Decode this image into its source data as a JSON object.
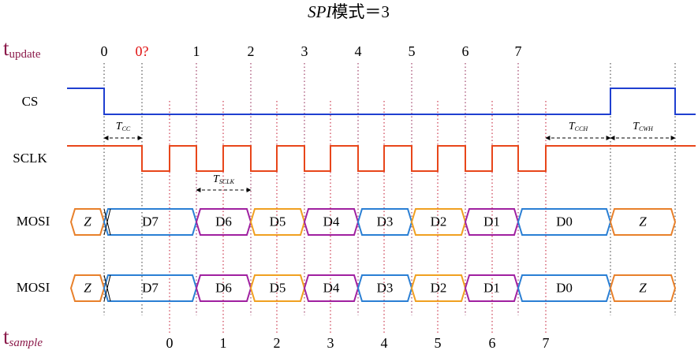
{
  "title": {
    "italic": "SPI",
    "rest": "模式＝3"
  },
  "rows": {
    "update": {
      "main": "t",
      "sub": "update"
    },
    "cs": "CS",
    "sclk": "SCLK",
    "mosi1": "MOSI",
    "mosi2": "MOSI",
    "sample": {
      "main": "t",
      "sub": "sample"
    }
  },
  "update_ticks": [
    "0",
    "0?",
    "1",
    "2",
    "3",
    "4",
    "5",
    "6",
    "7"
  ],
  "sample_ticks": [
    "0",
    "1",
    "2",
    "3",
    "4",
    "5",
    "6",
    "7"
  ],
  "timings": [
    {
      "main": "T",
      "sub": "CC"
    },
    {
      "main": "T",
      "sub": "SCLK"
    },
    {
      "main": "T",
      "sub": "CCH"
    },
    {
      "main": "T",
      "sub": "CWH"
    }
  ],
  "bus1": [
    "Z",
    "D7",
    "D6",
    "D5",
    "D4",
    "D3",
    "D2",
    "D1",
    "D0",
    "Z"
  ],
  "bus2": [
    "Z",
    "D7",
    "D6",
    "D5",
    "D4",
    "D3",
    "D2",
    "D1",
    "D0",
    "Z"
  ]
}
